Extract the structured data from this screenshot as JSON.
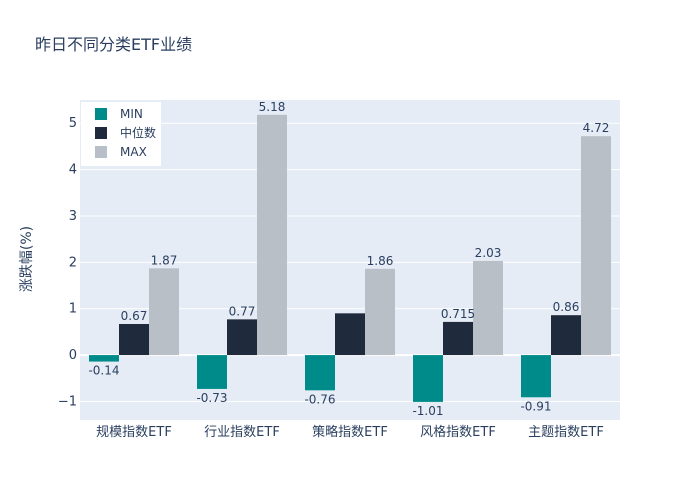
{
  "chart_data": {
    "type": "bar",
    "title": "昨日不同分类ETF业绩",
    "xlabel": "",
    "ylabel": "涨跌幅(%)",
    "ylim": [
      -1.4,
      5.5
    ],
    "yticks": [
      -1,
      0,
      1,
      2,
      3,
      4,
      5
    ],
    "ytick_labels": [
      "−1",
      "0",
      "1",
      "2",
      "3",
      "4",
      "5"
    ],
    "grid": true,
    "legend_position": "top-left",
    "categories": [
      "规模指数ETF",
      "行业指数ETF",
      "策略指数ETF",
      "风格指数ETF",
      "主题指数ETF"
    ],
    "series": [
      {
        "name": "MIN",
        "color": "#008b8b",
        "values": [
          -0.14,
          -0.73,
          -0.76,
          -1.01,
          -0.91
        ],
        "labels": [
          "-0.14",
          "-0.73",
          "-0.76",
          "-1.01",
          "-0.91"
        ],
        "label_position": "below"
      },
      {
        "name": "中位数",
        "color": "#1f2a3c",
        "values": [
          0.67,
          0.77,
          0.9,
          0.715,
          0.86
        ],
        "labels": [
          "0.67",
          "0.77",
          "",
          "0.715",
          "0.86"
        ],
        "label_position": "above"
      },
      {
        "name": "MAX",
        "color": "#b8bfc7",
        "values": [
          1.87,
          5.18,
          1.86,
          2.03,
          4.72
        ],
        "labels": [
          "1.87",
          "5.18",
          "1.86",
          "2.03",
          "4.72"
        ],
        "label_position": "above"
      }
    ]
  }
}
